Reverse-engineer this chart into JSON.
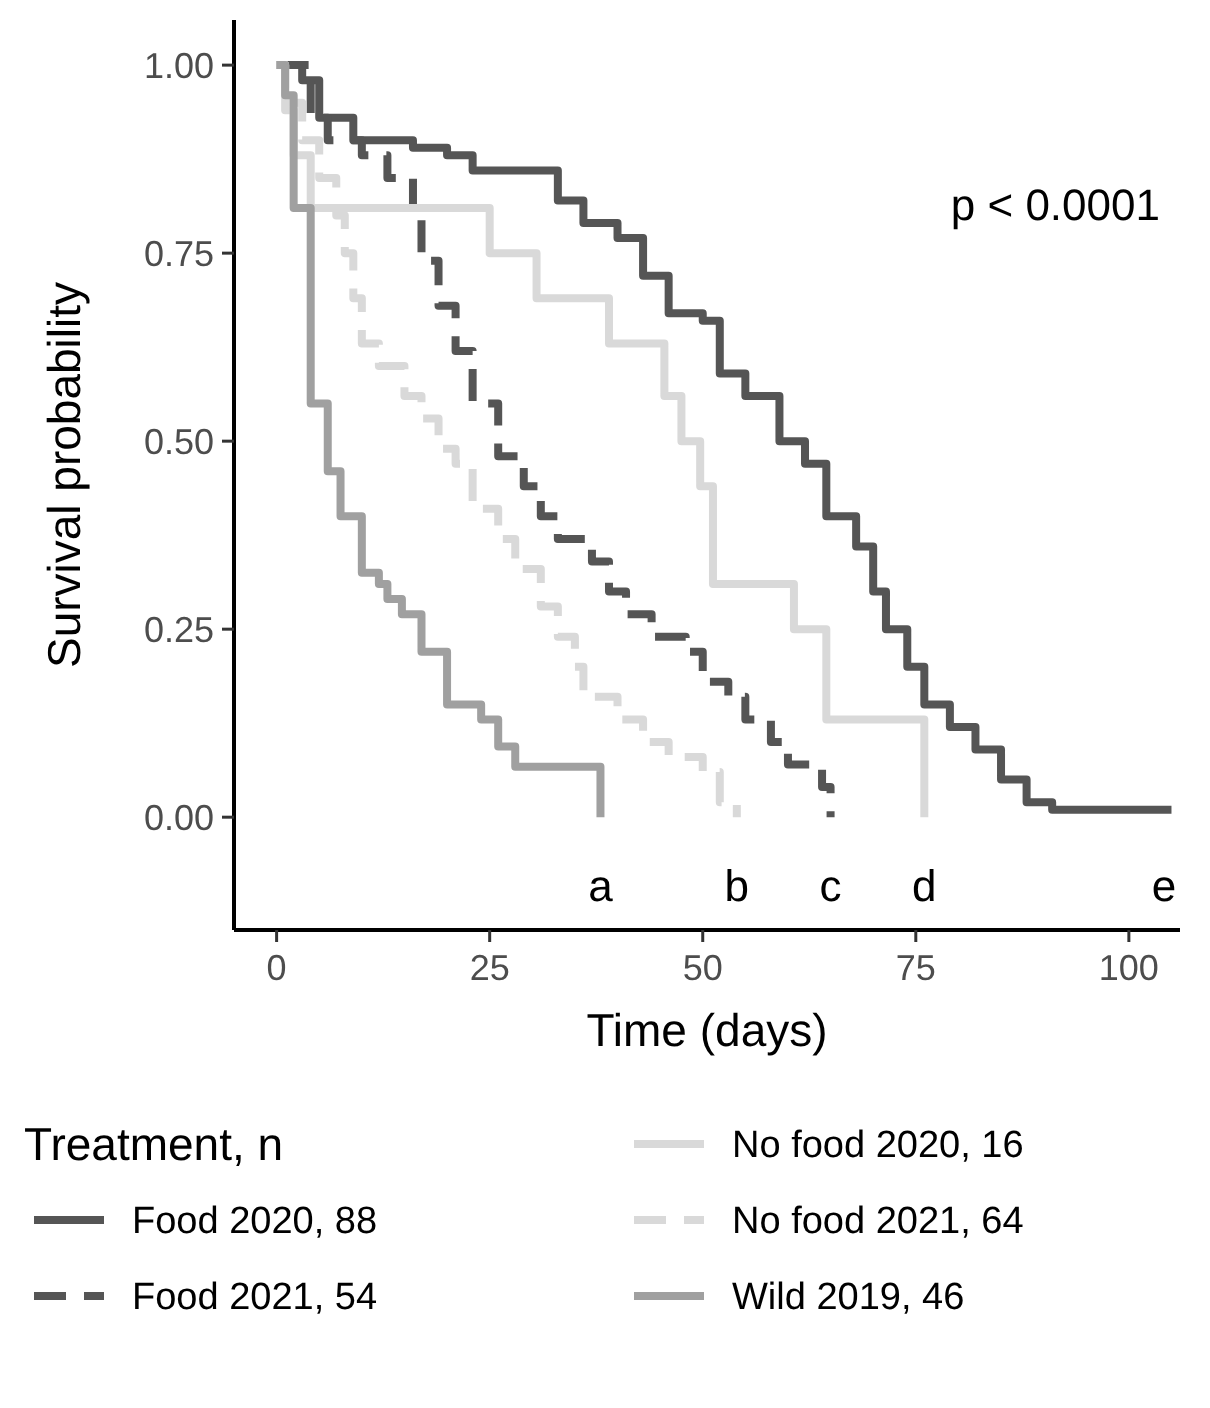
{
  "chart_data": {
    "type": "step",
    "xlabel": "Time (days)",
    "ylabel": "Survival probability",
    "legend_title": "Treatment, n",
    "legend": "bottom",
    "grid": false,
    "xlim": [
      -5,
      106
    ],
    "ylim": [
      -0.15,
      1.06
    ],
    "xticks": [
      0,
      25,
      50,
      75,
      100
    ],
    "yticks": [
      {
        "value": 0,
        "label": "0.00"
      },
      {
        "value": 0.25,
        "label": "0.25"
      },
      {
        "value": 0.5,
        "label": "0.50"
      },
      {
        "value": 0.75,
        "label": "0.75"
      },
      {
        "value": 1,
        "label": "1.00"
      }
    ],
    "series": [
      {
        "name": "Food 2020, 88",
        "color": "#555555",
        "line_style": "solid",
        "x": [
          0,
          3,
          5,
          9,
          16,
          20,
          23,
          33,
          36,
          40,
          43,
          46,
          50,
          52,
          55,
          59,
          62,
          64.5,
          68,
          70,
          71.5,
          74,
          76,
          79,
          82,
          85,
          88,
          91,
          105
        ],
        "values": [
          1,
          0.98,
          0.93,
          0.9,
          0.89,
          0.88,
          0.86,
          0.82,
          0.79,
          0.77,
          0.72,
          0.67,
          0.66,
          0.59,
          0.56,
          0.5,
          0.47,
          0.4,
          0.36,
          0.3,
          0.25,
          0.2,
          0.15,
          0.12,
          0.09,
          0.05,
          0.02,
          0.01,
          0.01
        ]
      },
      {
        "name": "Food 2021, 54",
        "color": "#555555",
        "line_style": "dashed",
        "x": [
          0,
          4,
          6,
          10,
          13,
          16,
          17,
          19,
          21,
          23,
          26,
          29,
          31,
          33,
          37,
          39,
          41,
          44,
          48,
          50,
          53,
          55,
          58,
          60,
          64,
          65
        ],
        "values": [
          1,
          0.93,
          0.9,
          0.88,
          0.85,
          0.8,
          0.74,
          0.68,
          0.62,
          0.55,
          0.48,
          0.44,
          0.4,
          0.37,
          0.34,
          0.3,
          0.27,
          0.24,
          0.22,
          0.18,
          0.16,
          0.13,
          0.1,
          0.07,
          0.04,
          0
        ]
      },
      {
        "name": "No food 2020, 16",
        "color": "#d9d9d9",
        "line_style": "solid",
        "x": [
          0,
          1,
          2,
          4,
          25,
          30.5,
          39,
          45.5,
          47.5,
          49.7,
          51.2,
          60.7,
          64.5,
          76
        ],
        "values": [
          1,
          0.94,
          0.88,
          0.81,
          0.75,
          0.69,
          0.63,
          0.56,
          0.5,
          0.44,
          0.31,
          0.25,
          0.13,
          0
        ]
      },
      {
        "name": "No food 2021, 64",
        "color": "#d9d9d9",
        "line_style": "dashed",
        "x": [
          0,
          1,
          3,
          5,
          7,
          8,
          9,
          10,
          12,
          15,
          17,
          19,
          21,
          23,
          26,
          28,
          31,
          33,
          35,
          36,
          40,
          43,
          46,
          50,
          52,
          54
        ],
        "values": [
          1,
          0.95,
          0.9,
          0.85,
          0.8,
          0.75,
          0.69,
          0.63,
          0.6,
          0.56,
          0.53,
          0.49,
          0.47,
          0.41,
          0.37,
          0.33,
          0.28,
          0.24,
          0.2,
          0.16,
          0.13,
          0.1,
          0.08,
          0.06,
          0.02,
          0
        ]
      },
      {
        "name": "Wild 2019, 46",
        "color": "#a0a0a0",
        "line_style": "solid",
        "x": [
          0,
          1,
          2,
          4,
          6,
          7.5,
          10,
          12,
          13,
          14.7,
          17,
          20,
          24,
          26,
          28,
          38
        ],
        "values": [
          1,
          0.96,
          0.81,
          0.55,
          0.46,
          0.4,
          0.325,
          0.31,
          0.29,
          0.27,
          0.22,
          0.15,
          0.13,
          0.094,
          0.067,
          0
        ]
      }
    ],
    "annotations": [
      "p < 0.0001",
      "a",
      "b",
      "c",
      "d",
      "e"
    ]
  }
}
